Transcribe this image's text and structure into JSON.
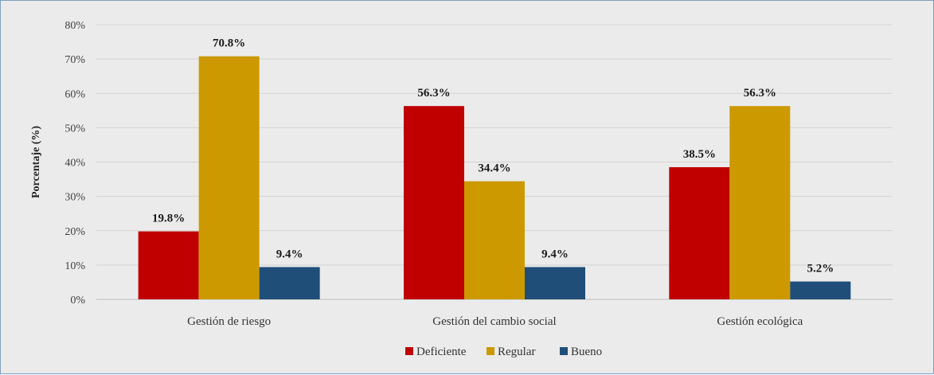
{
  "chart_data": {
    "type": "bar",
    "title": "",
    "xlabel": "",
    "ylabel": "Porcentaje (%)",
    "categories": [
      "Gestión de riesgo",
      "Gestión del cambio social",
      "Gestión ecológica"
    ],
    "series": [
      {
        "name": "Deficiente",
        "values": [
          19.8,
          56.3,
          38.5
        ],
        "color": "#c00000",
        "labels": [
          "19.8%",
          "56.3%",
          "38.5%"
        ]
      },
      {
        "name": "Regular",
        "values": [
          70.8,
          34.4,
          56.3
        ],
        "color": "#cc9a00",
        "labels": [
          "70.8%",
          "34.4%",
          "56.3%"
        ]
      },
      {
        "name": "Bueno",
        "values": [
          9.4,
          9.4,
          5.2
        ],
        "color": "#1f4e79",
        "labels": [
          "9.4%",
          "9.4%",
          "5.2%"
        ]
      }
    ],
    "ylim": [
      0,
      80
    ],
    "yticks": [
      0,
      10,
      20,
      30,
      40,
      50,
      60,
      70,
      80
    ],
    "ytick_labels": [
      "0%",
      "10%",
      "20%",
      "30%",
      "40%",
      "50%",
      "60%",
      "70%",
      "80%"
    ],
    "grid": true,
    "legend_position": "bottom"
  }
}
